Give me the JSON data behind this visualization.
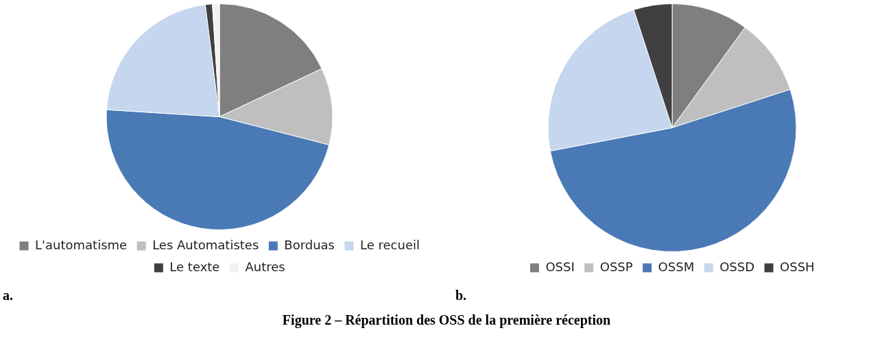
{
  "chart_data": [
    {
      "type": "pie",
      "categories": [
        "L'automatisme",
        "Les Automatistes",
        "Borduas",
        "Le recueil",
        "Le texte",
        "Autres"
      ],
      "values": [
        18,
        11,
        47,
        22,
        1,
        1
      ],
      "colors": [
        "#7f7f7f",
        "#bfbfbf",
        "#4a7ab5",
        "#c5d6ee",
        "#404040",
        "#f2f2f2"
      ],
      "legend": "bottom",
      "annotations": [
        "a."
      ]
    },
    {
      "type": "pie",
      "categories": [
        "OSSI",
        "OSSP",
        "OSSM",
        "OSSD",
        "OSSH"
      ],
      "values": [
        10,
        10,
        52,
        23,
        5
      ],
      "colors": [
        "#7f7f7f",
        "#bfbfbf",
        "#4a7ab5",
        "#c5d6ee",
        "#404040"
      ],
      "legend": "bottom",
      "annotations": [
        "b.",
        "Figure 2 – Répartition des OSS de la première réception"
      ]
    }
  ]
}
